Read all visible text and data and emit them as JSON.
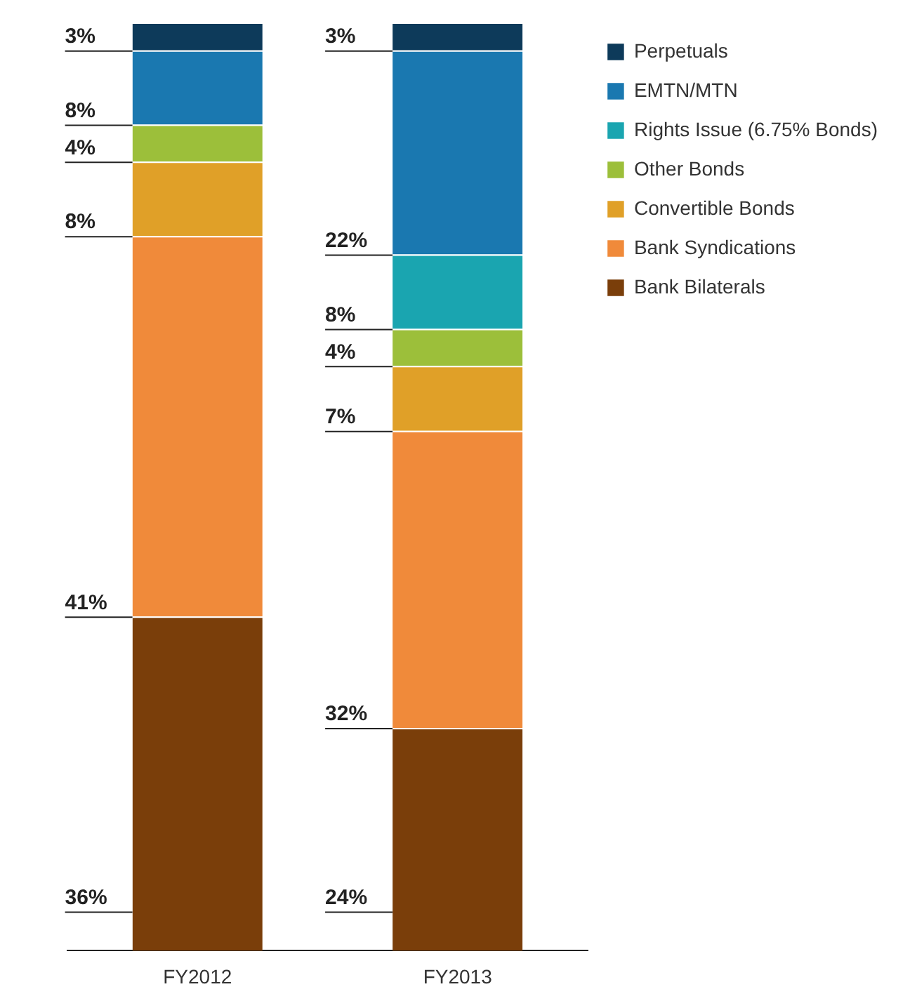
{
  "chart_data": {
    "type": "bar",
    "stacked": true,
    "categories": [
      "FY2012",
      "FY2013"
    ],
    "legend": "top right",
    "data_labels": true,
    "series": [
      {
        "name": "Bank Bilaterals",
        "color": "#7a3e0a",
        "values": [
          36,
          24
        ],
        "value_labels": [
          "36%",
          "24%"
        ]
      },
      {
        "name": "Bank Syndications",
        "color": "#f08a3a",
        "values": [
          41,
          32
        ],
        "value_labels": [
          "41%",
          "32%"
        ]
      },
      {
        "name": "Convertible Bonds",
        "color": "#e0a028",
        "values": [
          8,
          7
        ],
        "value_labels": [
          "8%",
          "7%"
        ]
      },
      {
        "name": "Other Bonds",
        "color": "#9cbf3a",
        "values": [
          4,
          4
        ],
        "value_labels": [
          "4%",
          "4%"
        ]
      },
      {
        "name": "Rights Issue (6.75% Bonds)",
        "color": "#1aa5b0",
        "values": [
          null,
          8
        ],
        "value_labels": [
          null,
          "8%"
        ]
      },
      {
        "name": "EMTN/MTN",
        "color": "#1a78b0",
        "values": [
          8,
          22
        ],
        "value_labels": [
          "8%",
          "22%"
        ]
      },
      {
        "name": "Perpetuals",
        "color": "#0d3a5a",
        "values": [
          3,
          3
        ],
        "value_labels": [
          "3%",
          "3%"
        ]
      }
    ]
  }
}
